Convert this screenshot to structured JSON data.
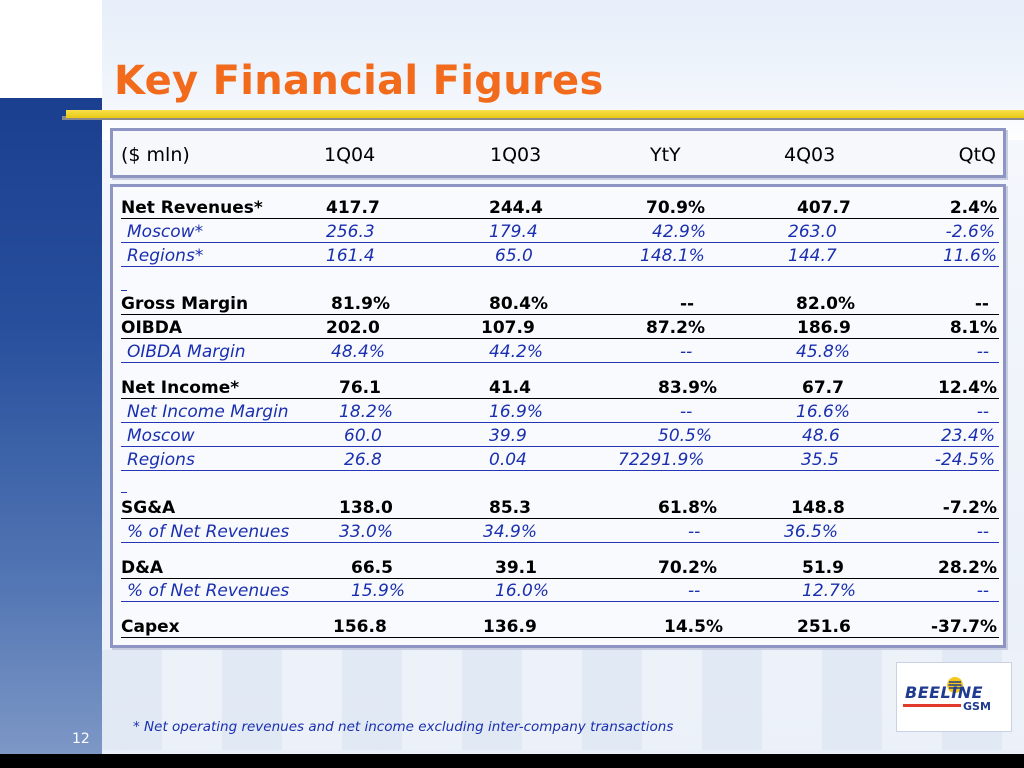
{
  "title": "Key Financial Figures",
  "header": [
    "($ mln)",
    "1Q04",
    "1Q03",
    "YtY",
    "4Q03",
    "QtQ"
  ],
  "rows": [
    {
      "label": "Net Revenues*",
      "q104": "417.7",
      "q103": "244.4",
      "yty": "70.9%",
      "q403": "407.7",
      "qtq": "2.4%"
    },
    {
      "label": "Moscow*",
      "q104": "256.3",
      "q103": "179.4",
      "yty": "42.9%",
      "q403": "263.0",
      "qtq": "-2.6%"
    },
    {
      "label": "Regions*",
      "q104": "161.4",
      "q103": "65.0",
      "yty": "148.1%",
      "q403": "144.7",
      "qtq": "11.6%"
    },
    {
      "label": "Gross Margin",
      "q104": "81.9%",
      "q103": "80.4%",
      "yty": "--",
      "q403": "82.0%",
      "qtq": "--"
    },
    {
      "label": "OIBDA",
      "q104": "202.0",
      "q103": "107.9",
      "yty": "87.2%",
      "q403": "186.9",
      "qtq": "8.1%"
    },
    {
      "label": "OIBDA Margin",
      "q104": "48.4%",
      "q103": "44.2%",
      "yty": "--",
      "q403": "45.8%",
      "qtq": "--"
    },
    {
      "label": "Net Income*",
      "q104": "76.1",
      "q103": "41.4",
      "yty": "83.9%",
      "q403": "67.7",
      "qtq": "12.4%"
    },
    {
      "label": "Net Income Margin",
      "q104": "18.2%",
      "q103": "16.9%",
      "yty": "--",
      "q403": "16.6%",
      "qtq": "--"
    },
    {
      "label": "Moscow",
      "q104": "60.0",
      "q103": "39.9",
      "yty": "50.5%",
      "q403": "48.6",
      "qtq": "23.4%"
    },
    {
      "label": "Regions",
      "q104": "26.8",
      "q103": "0.04",
      "yty": "72291.9%",
      "q403": "35.5",
      "qtq": "-24.5%"
    },
    {
      "label": "SG&A",
      "q104": "138.0",
      "q103": "85.3",
      "yty": "61.8%",
      "q403": "148.8",
      "qtq": "-7.2%"
    },
    {
      "label": "% of Net Revenues",
      "q104": "33.0%",
      "q103": "34.9%",
      "yty": "--",
      "q403": "36.5%",
      "qtq": "--"
    },
    {
      "label": "D&A",
      "q104": "66.5",
      "q103": "39.1",
      "yty": "70.2%",
      "q403": "51.9",
      "qtq": "28.2%"
    },
    {
      "label": "% of Net Revenues",
      "q104": "15.9%",
      "q103": "16.0%",
      "yty": "--",
      "q403": "12.7%",
      "qtq": "--"
    },
    {
      "label": "Capex",
      "q104": "156.8",
      "q103": "136.9",
      "yty": "14.5%",
      "q403": "251.6",
      "qtq": "-37.7%"
    }
  ],
  "footnote": "* Net operating revenues and net income excluding inter-company transactions",
  "page_number": "12",
  "logo": {
    "word": "BEELINE",
    "sub": "GSM"
  },
  "colors": {
    "title": "#f26b1d",
    "sub_rows": "#1a2fb0",
    "box_border": "#8e95c2",
    "rule": "#e8c814"
  }
}
